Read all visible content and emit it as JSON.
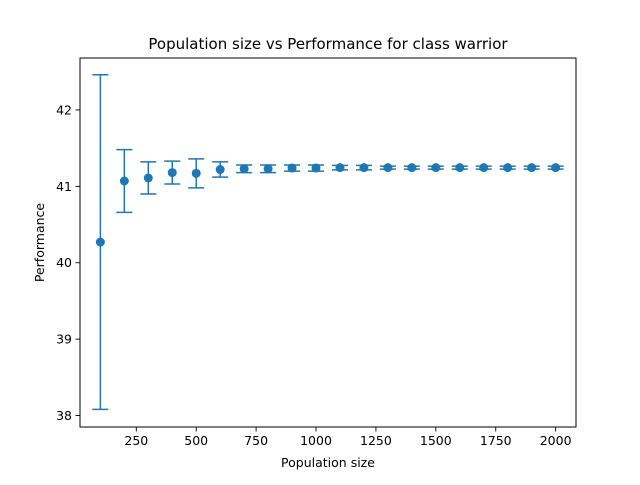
{
  "chart_data": {
    "type": "scatter",
    "title": "Population size vs Performance for class warrior",
    "xlabel": "Population size",
    "ylabel": "Performance",
    "xlim": [
      15,
      2085
    ],
    "ylim": [
      37.85,
      42.68
    ],
    "xticks": [
      250,
      500,
      750,
      1000,
      1250,
      1500,
      1750,
      2000
    ],
    "yticks": [
      38,
      39,
      40,
      41,
      42
    ],
    "grid": false,
    "legend": "none",
    "marker_color": "#1f77b4",
    "series": [
      {
        "x": [
          100,
          200,
          300,
          400,
          500,
          600,
          700,
          800,
          900,
          1000,
          1100,
          1200,
          1300,
          1400,
          1500,
          1600,
          1700,
          1800,
          1900,
          2000
        ],
        "y": [
          40.27,
          41.07,
          41.11,
          41.18,
          41.17,
          41.22,
          41.23,
          41.23,
          41.24,
          41.24,
          41.245,
          41.245,
          41.245,
          41.245,
          41.245,
          41.245,
          41.245,
          41.245,
          41.245,
          41.245
        ],
        "yerr": [
          2.19,
          0.41,
          0.21,
          0.15,
          0.19,
          0.1,
          0.05,
          0.05,
          0.04,
          0.04,
          0.03,
          0.03,
          0.02,
          0.02,
          0.02,
          0.02,
          0.02,
          0.02,
          0.02,
          0.02
        ]
      }
    ]
  }
}
